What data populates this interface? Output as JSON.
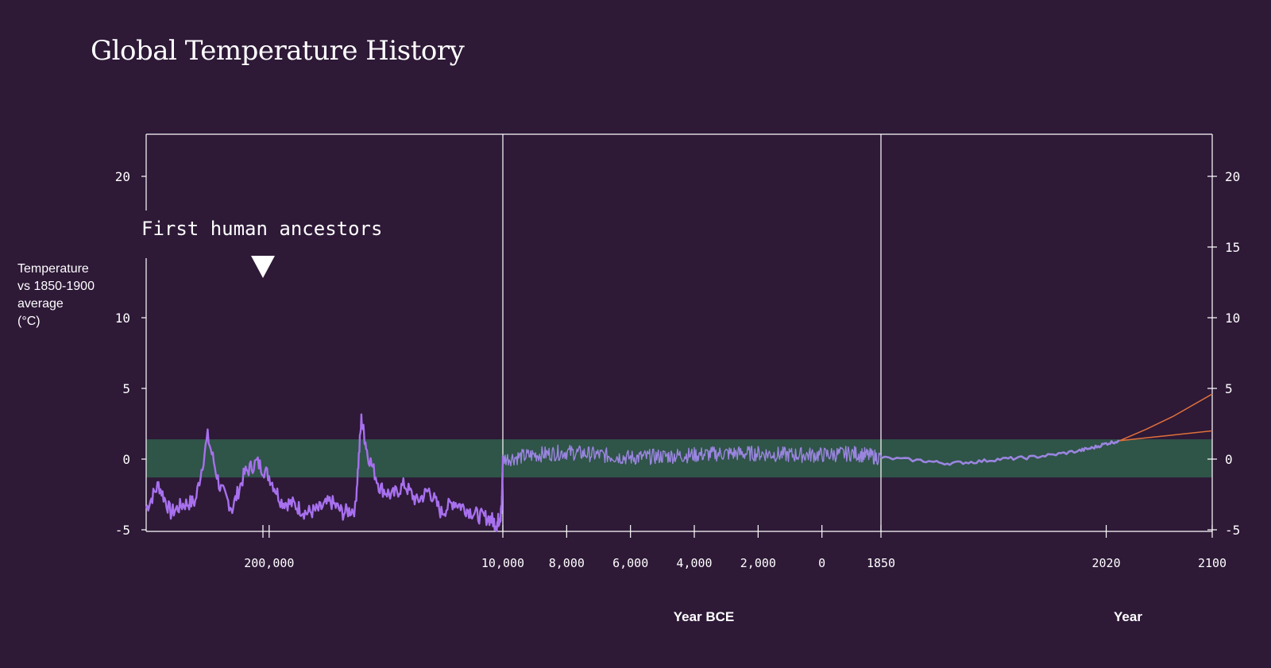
{
  "chart_data": {
    "type": "line",
    "title": "Global Temperature History",
    "ylabel": "Temperature\nvs 1850-1900\naverage\n(°C)",
    "xlabel_segments": [
      "Year BCE",
      "Year"
    ],
    "ylim": [
      -5,
      25
    ],
    "left_yticks": [
      20,
      10,
      5,
      0,
      -5
    ],
    "right_yticks": [
      20,
      15,
      10,
      5,
      0,
      -5
    ],
    "x_ticks": [
      "200,000",
      "10,000",
      "8,000",
      "6,000",
      "4,000",
      "2,000",
      "0",
      "1850",
      "2020",
      "2100"
    ],
    "band": {
      "low": -1.3,
      "high": 1.4,
      "color": "#2f5448"
    },
    "annotation": {
      "text": "First human ancestors",
      "x": "200,000"
    },
    "colors": {
      "background": "#2e1937",
      "paleo_series": "#a770ee",
      "holocene_series": "#9a85e0",
      "modern_series": "#9a85e0",
      "projection": "#e0703a",
      "axis": "#ffffff"
    },
    "series": [
      {
        "segment": "paleo",
        "x": [
          -300000,
          -290000,
          -280000,
          -270000,
          -260000,
          -250000,
          -240000,
          -230000,
          -220000,
          -210000,
          -200000,
          -190000,
          -180000,
          -170000,
          -160000,
          -150000,
          -140000,
          -130000,
          -125000,
          -120000,
          -110000,
          -100000,
          -90000,
          -80000,
          -70000,
          -60000,
          -50000,
          -40000,
          -30000,
          -20000,
          -15000,
          -12000,
          -11000,
          -10000
        ],
        "values": [
          -3.5,
          -1.8,
          -3.8,
          -3.2,
          -3.0,
          1.6,
          -2.0,
          -3.5,
          -1.0,
          -0.2,
          -1.2,
          -3.0,
          -3.2,
          -3.8,
          -3.6,
          -3.0,
          -3.8,
          -3.5,
          2.8,
          0.4,
          -2.0,
          -2.6,
          -1.8,
          -3.0,
          -2.2,
          -3.8,
          -3.0,
          -3.5,
          -4.0,
          -4.2,
          -4.6,
          -4.0,
          -3.6,
          0.2
        ]
      },
      {
        "segment": "holocene",
        "x": [
          -10000,
          -9000,
          -8000,
          -7000,
          -6000,
          -5000,
          -4000,
          -3000,
          -2000,
          -1000,
          0,
          1000,
          1850
        ],
        "values": [
          0.0,
          0.3,
          0.5,
          0.3,
          0.1,
          0.2,
          0.3,
          0.4,
          0.4,
          0.3,
          0.3,
          0.4,
          0.1
        ]
      },
      {
        "segment": "modern",
        "x": [
          1850,
          1880,
          1900,
          1920,
          1940,
          1960,
          1980,
          2000,
          2010,
          2020,
          2030
        ],
        "values": [
          0.1,
          -0.1,
          -0.3,
          -0.2,
          0.0,
          0.1,
          0.3,
          0.6,
          0.8,
          1.1,
          1.3
        ]
      },
      {
        "segment": "projection-high",
        "x": [
          2030,
          2050,
          2070,
          2100
        ],
        "values": [
          1.3,
          2.1,
          3.0,
          4.6
        ]
      },
      {
        "segment": "projection-low",
        "x": [
          2030,
          2050,
          2070,
          2100
        ],
        "values": [
          1.3,
          1.5,
          1.7,
          2.0
        ]
      }
    ]
  }
}
